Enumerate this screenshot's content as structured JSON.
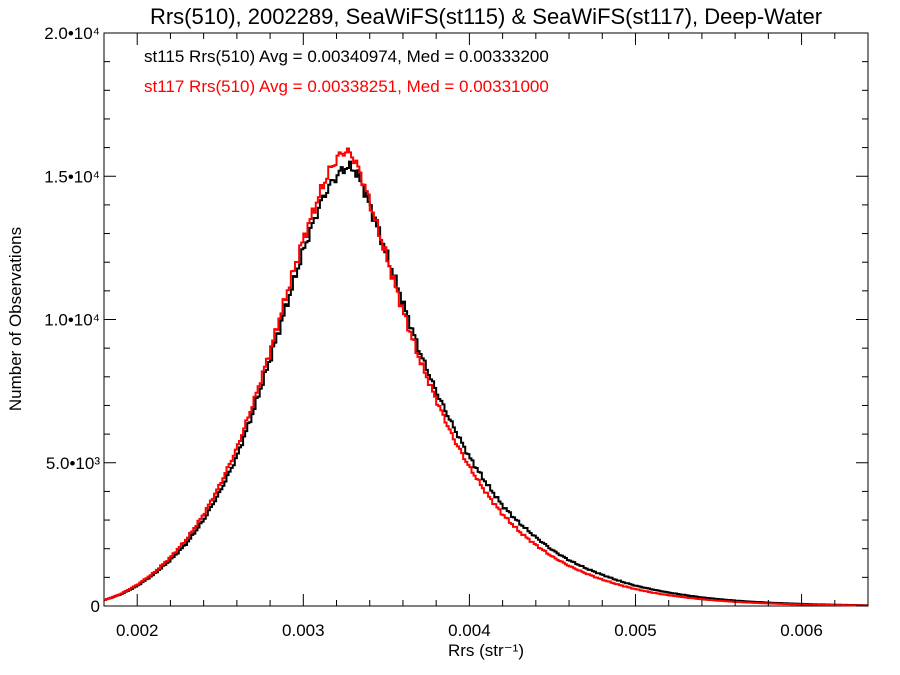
{
  "chart_data": {
    "type": "line",
    "title": "Rrs(510), 2002289, SeaWiFS(st115) & SeaWiFS(st117), Deep-Water",
    "xlabel": "Rrs (str⁻¹)",
    "ylabel": "Number of Observations",
    "xlim": [
      0.0018,
      0.0064
    ],
    "ylim": [
      0,
      20000
    ],
    "x_ticks": [
      {
        "value": 0.002,
        "label": "0.002"
      },
      {
        "value": 0.003,
        "label": "0.003"
      },
      {
        "value": 0.004,
        "label": "0.004"
      },
      {
        "value": 0.005,
        "label": "0.005"
      },
      {
        "value": 0.006,
        "label": "0.006"
      }
    ],
    "y_ticks": [
      {
        "value": 0,
        "label": "0"
      },
      {
        "value": 5000,
        "label": "5.0•10³"
      },
      {
        "value": 10000,
        "label": "1.0•10⁴"
      },
      {
        "value": 15000,
        "label": "1.5•10⁴"
      },
      {
        "value": 20000,
        "label": "2.0•10⁴"
      }
    ],
    "grid": false,
    "legend_position": "top-left",
    "annotations": [
      {
        "text": "st115 Rrs(510) Avg = 0.00340974, Med = 0.00333200",
        "color": "#000000"
      },
      {
        "text": "st117 Rrs(510) Avg = 0.00338251, Med = 0.00331000",
        "color": "#ff0000"
      }
    ],
    "series": [
      {
        "color": "#000000",
        "x": [
          0.0018,
          0.0019,
          0.002,
          0.0021,
          0.0022,
          0.0023,
          0.0024,
          0.0025,
          0.0026,
          0.0027,
          0.0028,
          0.0029,
          0.003,
          0.0031,
          0.00315,
          0.0032,
          0.00325,
          0.0033,
          0.00335,
          0.0034,
          0.0035,
          0.0036,
          0.0037,
          0.0038,
          0.0039,
          0.004,
          0.0041,
          0.0042,
          0.0043,
          0.0044,
          0.0045,
          0.0046,
          0.0047,
          0.0048,
          0.0049,
          0.005,
          0.0051,
          0.0052,
          0.0053,
          0.0054,
          0.0055,
          0.0056,
          0.0057,
          0.0058,
          0.0059,
          0.006,
          0.0061,
          0.0062,
          0.0063,
          0.0064
        ],
        "values": [
          200,
          400,
          700,
          1100,
          1600,
          2200,
          3000,
          4000,
          5200,
          6800,
          8600,
          10500,
          12400,
          14000,
          14600,
          15000,
          15300,
          15300,
          14800,
          14000,
          12300,
          10600,
          8900,
          7500,
          6300,
          5200,
          4300,
          3500,
          2900,
          2400,
          1950,
          1600,
          1320,
          1090,
          880,
          710,
          580,
          470,
          380,
          300,
          240,
          190,
          150,
          120,
          95,
          75,
          58,
          45,
          35,
          25
        ]
      },
      {
        "color": "#ff0000",
        "x": [
          0.0018,
          0.0019,
          0.002,
          0.0021,
          0.0022,
          0.0023,
          0.0024,
          0.0025,
          0.0026,
          0.0027,
          0.0028,
          0.0029,
          0.003,
          0.0031,
          0.00315,
          0.0032,
          0.00325,
          0.0033,
          0.00335,
          0.0034,
          0.0035,
          0.0036,
          0.0037,
          0.0038,
          0.0039,
          0.004,
          0.0041,
          0.0042,
          0.0043,
          0.0044,
          0.0045,
          0.0046,
          0.0047,
          0.0048,
          0.0049,
          0.005,
          0.0051,
          0.0052,
          0.0053,
          0.0054,
          0.0055,
          0.0056,
          0.0057,
          0.0058,
          0.0059,
          0.006,
          0.0061,
          0.0062,
          0.0063,
          0.0064
        ],
        "values": [
          200,
          420,
          740,
          1160,
          1700,
          2350,
          3200,
          4250,
          5500,
          7100,
          8900,
          10900,
          12800,
          14400,
          15100,
          15600,
          15900,
          15700,
          15000,
          14100,
          12200,
          10300,
          8600,
          7200,
          5900,
          4850,
          3950,
          3200,
          2600,
          2130,
          1720,
          1400,
          1140,
          920,
          740,
          590,
          470,
          375,
          300,
          235,
          185,
          145,
          115,
          90,
          70,
          55,
          42,
          32,
          25,
          18
        ]
      }
    ]
  }
}
